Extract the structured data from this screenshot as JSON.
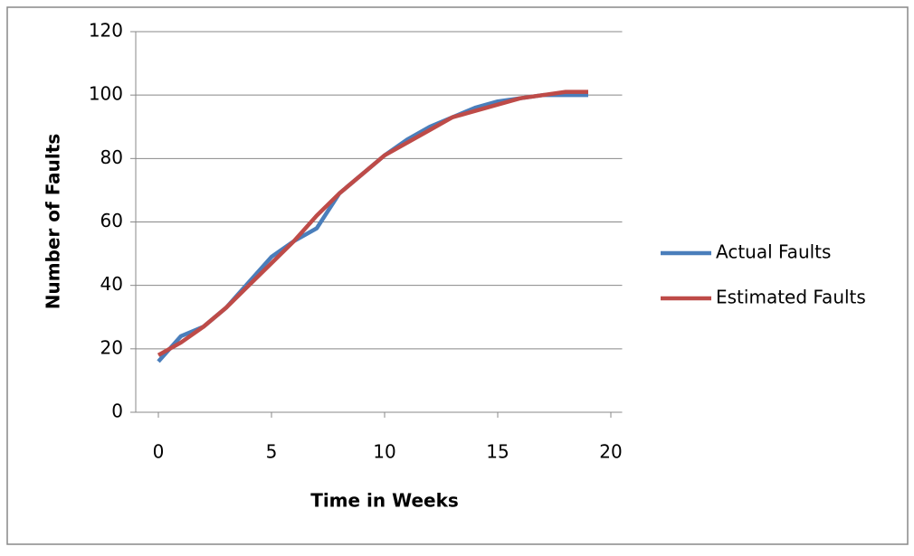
{
  "chart_data": {
    "type": "line",
    "xlabel": "Time in Weeks",
    "ylabel": "Number of Faults",
    "x": [
      0,
      1,
      2,
      3,
      4,
      5,
      6,
      7,
      8,
      9,
      10,
      11,
      12,
      13,
      14,
      15,
      16,
      17,
      18,
      19
    ],
    "series": [
      {
        "name": "Actual Faults",
        "color": "#4a7ebb",
        "values": [
          16,
          24,
          27,
          33,
          41,
          49,
          54,
          58,
          69,
          75,
          81,
          86,
          90,
          93,
          96,
          98,
          99,
          100,
          100,
          100
        ]
      },
      {
        "name": "Estimated Faults",
        "color": "#be4b48",
        "values": [
          18,
          22,
          27,
          33,
          40,
          47,
          54,
          62,
          69,
          75,
          81,
          85,
          89,
          93,
          95,
          97,
          99,
          100,
          101,
          101
        ]
      }
    ],
    "xlim": [
      -1,
      20.5
    ],
    "xticks": [
      0,
      5,
      10,
      15,
      20
    ],
    "ylim": [
      0,
      120
    ],
    "yticks": [
      0,
      20,
      40,
      60,
      80,
      100,
      120
    ],
    "grid": true,
    "legend": "right"
  }
}
